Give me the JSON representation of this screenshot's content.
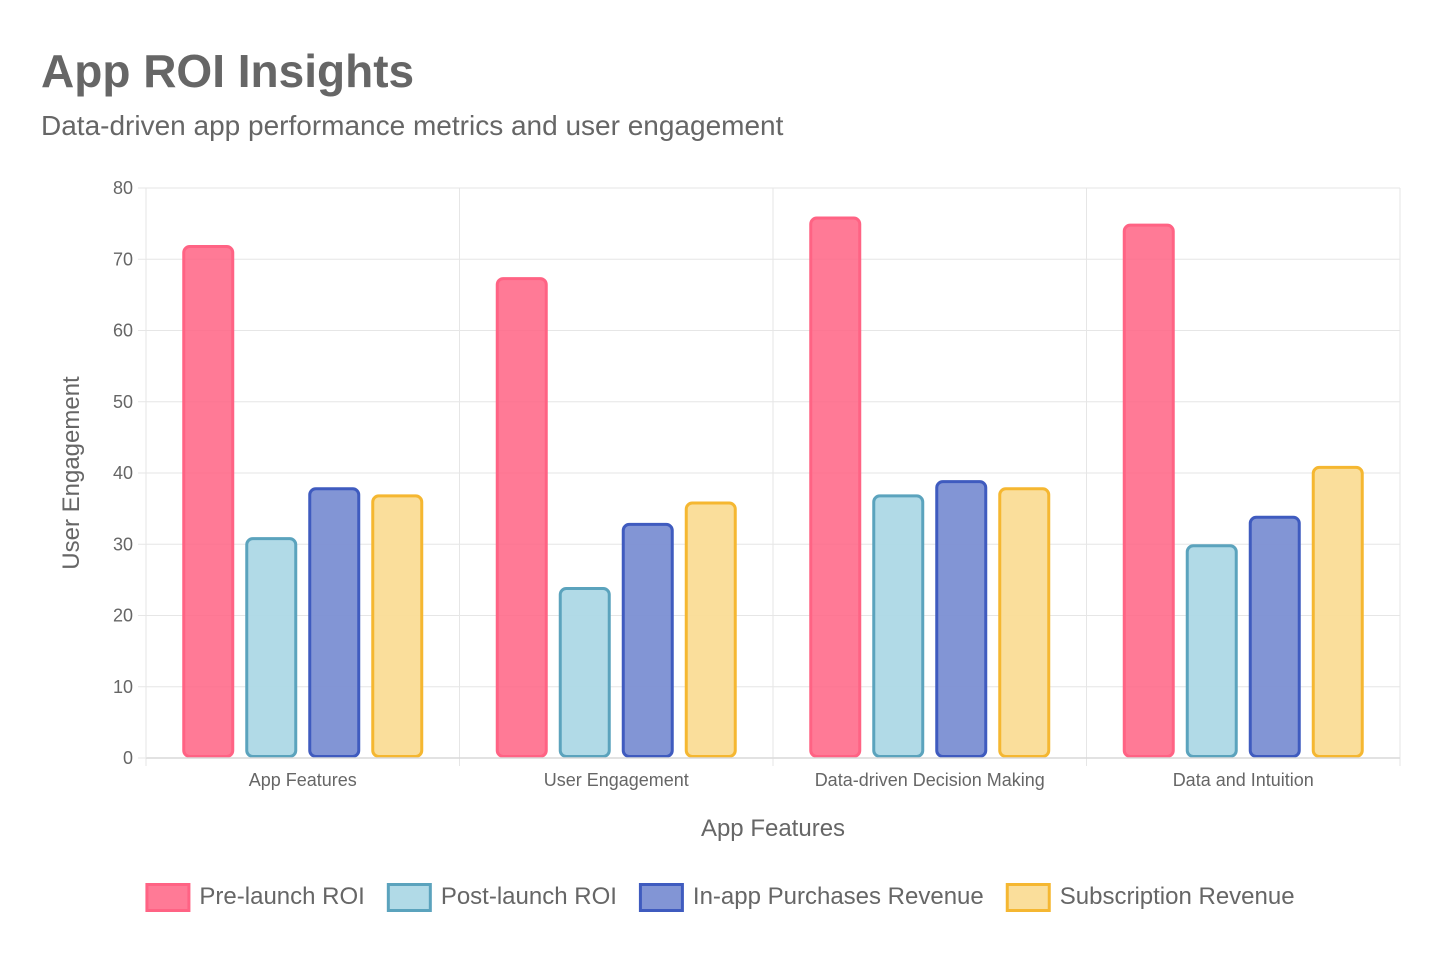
{
  "header": {
    "title": "App ROI Insights",
    "subtitle": "Data-driven app performance metrics and user engagement"
  },
  "chart_data": {
    "type": "bar",
    "categories": [
      "App Features",
      "User Engagement",
      "Data-driven Decision Making",
      "Data and Intuition"
    ],
    "series": [
      {
        "name": "Pre-launch ROI",
        "values": [
          72,
          67.5,
          76,
          75
        ],
        "fill": "#ff6384",
        "stroke": "#ff6384"
      },
      {
        "name": "Post-launch ROI",
        "values": [
          31,
          24,
          37,
          30
        ],
        "fill": "#add8e6",
        "stroke": "#5ba3bd"
      },
      {
        "name": "In-app Purchases Revenue",
        "values": [
          38,
          33,
          39,
          34
        ],
        "fill": "#7b8fd3",
        "stroke": "#3f5bbf"
      },
      {
        "name": "Subscription Revenue",
        "values": [
          37,
          36,
          38,
          41
        ],
        "fill": "#fadc96",
        "stroke": "#f5b731"
      }
    ],
    "xlabel": "App Features",
    "ylabel": "User Engagement",
    "ylim": [
      0,
      80
    ],
    "yticks": [
      0,
      10,
      20,
      30,
      40,
      50,
      60,
      70,
      80
    ],
    "grid": true,
    "legend": "bottom"
  }
}
